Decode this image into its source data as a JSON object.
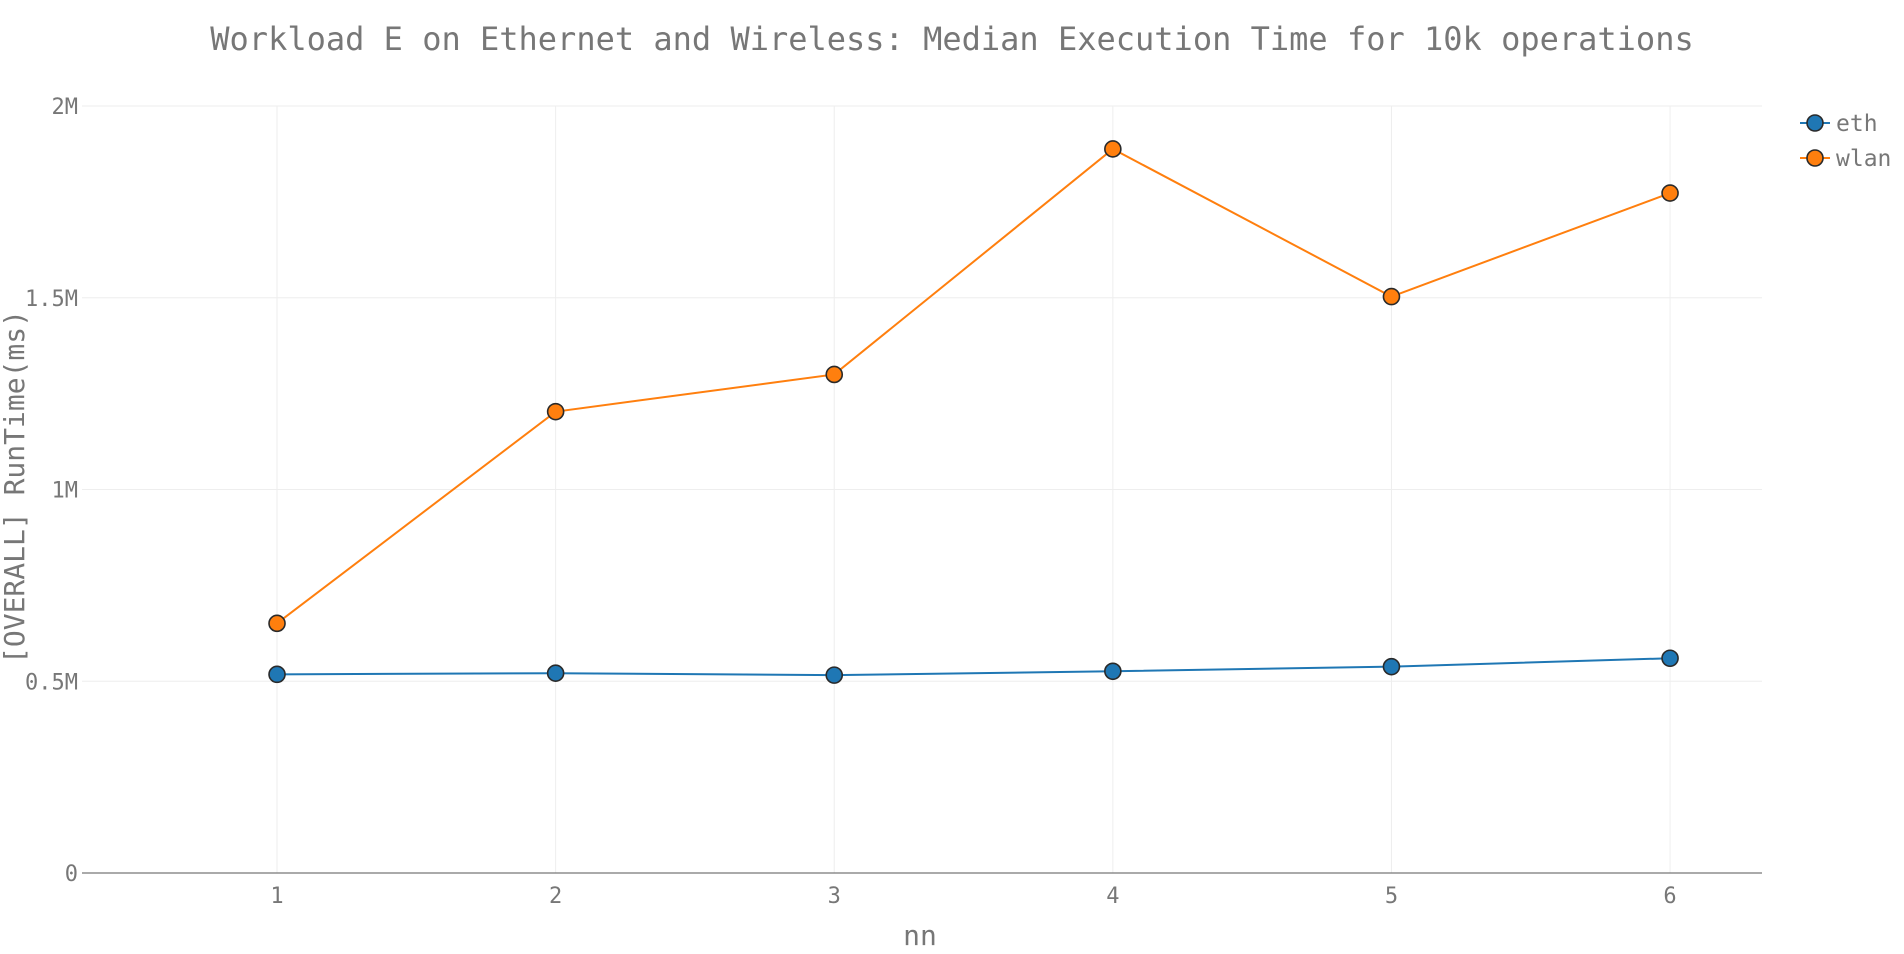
{
  "chart_data": {
    "type": "line",
    "title": "Workload E on Ethernet and Wireless: Median Execution Time for 10k operations",
    "xlabel": "nn",
    "ylabel": "[OVERALL] RunTime(ms)",
    "x": [
      1,
      2,
      3,
      4,
      5,
      6
    ],
    "x_tick_labels": [
      "1",
      "2",
      "3",
      "4",
      "5",
      "6"
    ],
    "xlim": [
      0.3,
      6.33
    ],
    "ylim": [
      0,
      2000000
    ],
    "y_ticks": [
      0,
      500000,
      1000000,
      1500000,
      2000000
    ],
    "y_tick_labels": [
      "0",
      "0.5M",
      "1M",
      "1.5M",
      "2M"
    ],
    "grid": true,
    "legend_position": "top-right",
    "series": [
      {
        "name": "eth",
        "color": "#1f77b4",
        "values": [
          518000,
          521000,
          516000,
          526000,
          538000,
          560000
        ]
      },
      {
        "name": "wlan",
        "color": "#ff7f0e",
        "values": [
          651000,
          1203000,
          1300000,
          1888000,
          1503000,
          1773000
        ]
      }
    ]
  }
}
